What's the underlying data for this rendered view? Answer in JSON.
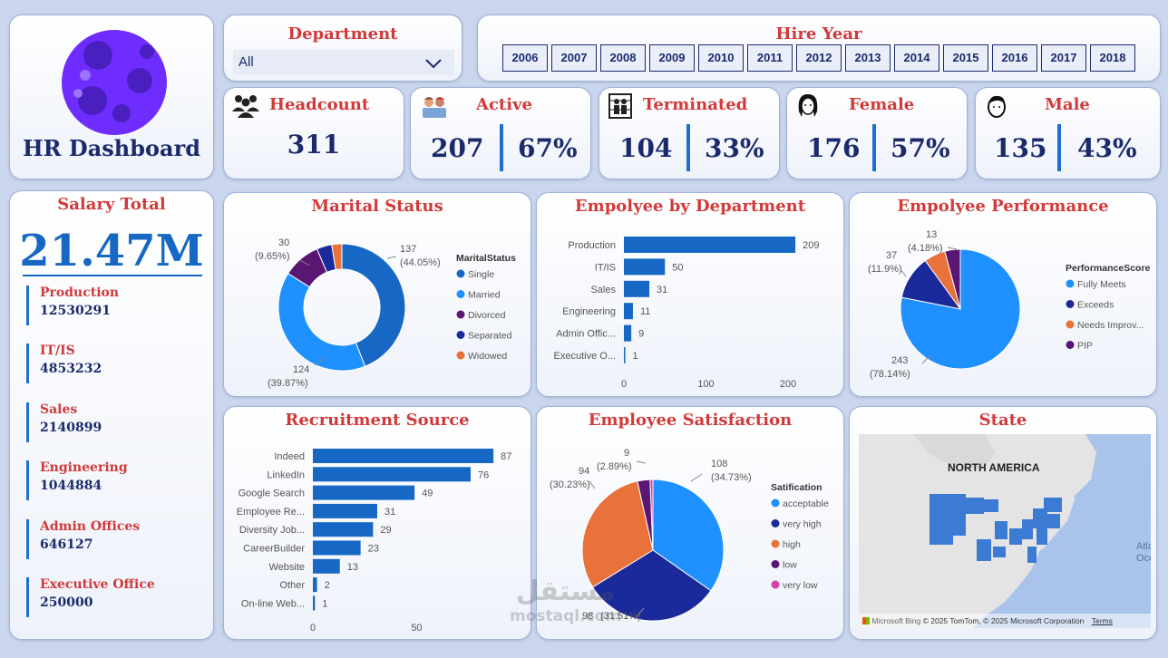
{
  "logo": {
    "title": "HR Dashboard"
  },
  "department": {
    "label": "Department",
    "selected": "All"
  },
  "hire_year": {
    "label": "Hire Year",
    "years": [
      "2006",
      "2007",
      "2008",
      "2009",
      "2010",
      "2011",
      "2012",
      "2013",
      "2014",
      "2015",
      "2016",
      "2017",
      "2018"
    ]
  },
  "kpis": {
    "headcount": {
      "label": "Headcount",
      "value": "311"
    },
    "active": {
      "label": "Active",
      "value": "207",
      "pct": "67%"
    },
    "terminated": {
      "label": "Terminated",
      "value": "104",
      "pct": "33%"
    },
    "female": {
      "label": "Female",
      "value": "176",
      "pct": "57%"
    },
    "male": {
      "label": "Male",
      "value": "135",
      "pct": "43%"
    }
  },
  "salary": {
    "title": "Salary Total",
    "total": "21.47M",
    "items": [
      {
        "name": "Production",
        "value": "12530291"
      },
      {
        "name": "IT/IS",
        "value": "4853232"
      },
      {
        "name": "Sales",
        "value": "2140899"
      },
      {
        "name": "Engineering",
        "value": "1044884"
      },
      {
        "name": "Admin Offices",
        "value": "646127"
      },
      {
        "name": "Executive Office",
        "value": "250000"
      }
    ]
  },
  "map": {
    "title": "State",
    "region_label": "NORTH AMERICA",
    "ocean_label_1": "Atlan",
    "ocean_label_2": "Oce",
    "bing": "Microsoft Bing",
    "copyright": "© 2025 TomTom, © 2025 Microsoft Corporation",
    "terms": "Terms"
  },
  "watermark": {
    "arabic": "مستقل",
    "latin": "mostaql.com"
  },
  "chart_data": [
    {
      "id": "marital",
      "type": "pie",
      "title": "Marital Status",
      "legend_title": "MaritalStatus",
      "categories": [
        "Single",
        "Married",
        "Divorced",
        "Separated",
        "Widowed"
      ],
      "values": [
        137,
        124,
        30,
        12,
        8
      ],
      "colors": [
        "#1668c4",
        "#1e90ff",
        "#5a1673",
        "#1b2a9a",
        "#e8723a"
      ],
      "labels": [
        {
          "v": "137",
          "p": "(44.05%)"
        },
        {
          "v": "124",
          "p": "(39.87%)"
        },
        {
          "v": "30",
          "p": "(9.65%)"
        }
      ]
    },
    {
      "id": "department",
      "type": "bar",
      "title": "Empolyee by Department",
      "categories": [
        "Production",
        "IT/IS",
        "Sales",
        "Engineering",
        "Admin Offic...",
        "Executive O..."
      ],
      "values": [
        209,
        50,
        31,
        11,
        9,
        1
      ],
      "xlim": [
        0,
        210
      ],
      "ticks": [
        0,
        100,
        200
      ],
      "color": "#1668c4"
    },
    {
      "id": "performance",
      "type": "pie",
      "title": "Empolyee Performance",
      "legend_title": "PerformanceScore",
      "categories": [
        "Fully Meets",
        "Exceeds",
        "Needs Improv...",
        "PIP"
      ],
      "values": [
        243,
        37,
        18,
        13
      ],
      "colors": [
        "#1e90ff",
        "#1b2a9a",
        "#e8723a",
        "#5a1673"
      ],
      "labels": [
        {
          "v": "243",
          "p": "(78.14%)"
        },
        {
          "v": "37",
          "p": "(11.9%)"
        },
        {
          "v": "13",
          "p": "(4.18%)"
        }
      ]
    },
    {
      "id": "recruitment",
      "type": "bar",
      "title": "Recruitment Source",
      "categories": [
        "Indeed",
        "LinkedIn",
        "Google Search",
        "Employee Re...",
        "Diversity Job...",
        "CareerBuilder",
        "Website",
        "Other",
        "On-line Web..."
      ],
      "values": [
        87,
        76,
        49,
        31,
        29,
        23,
        13,
        2,
        1
      ],
      "xlim": [
        0,
        90
      ],
      "ticks": [
        0,
        50
      ],
      "color": "#1668c4"
    },
    {
      "id": "satisfaction",
      "type": "pie",
      "title": "Employee Satisfaction",
      "legend_title": "Satification",
      "categories": [
        "acceptable",
        "very high",
        "high",
        "low",
        "very low"
      ],
      "values": [
        108,
        98,
        94,
        9,
        2
      ],
      "colors": [
        "#1e90ff",
        "#1b2a9a",
        "#e8723a",
        "#5a1673",
        "#d63fa8"
      ],
      "labels": [
        {
          "v": "108",
          "p": "(34.73%)"
        },
        {
          "v": "98",
          "p": "(31.51%)"
        },
        {
          "v": "94",
          "p": "(30.23%)"
        },
        {
          "v": "9",
          "p": "(2.89%)"
        }
      ]
    }
  ]
}
